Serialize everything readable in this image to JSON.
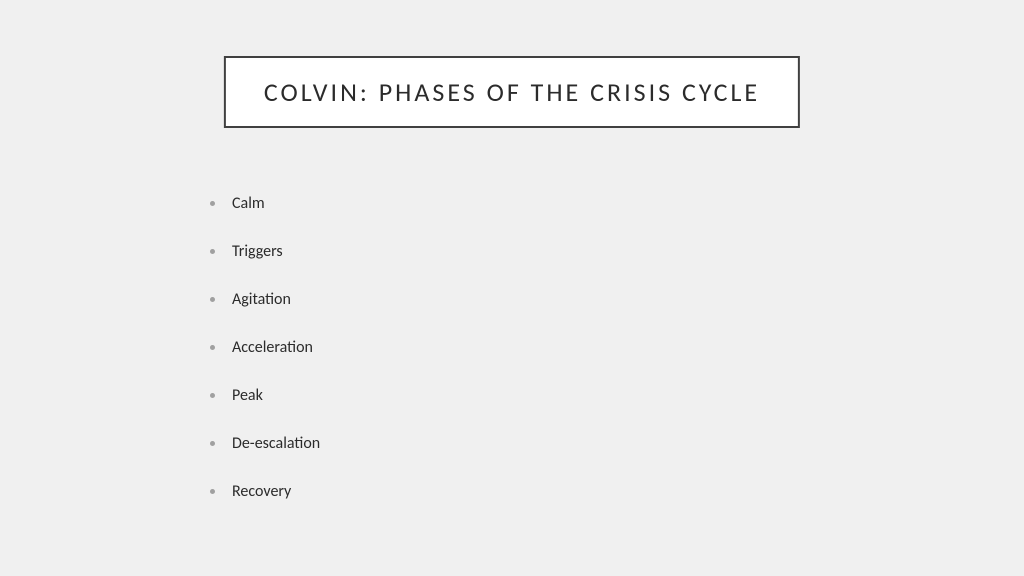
{
  "slide": {
    "title": "COLVIN: PHASES OF THE CRISIS CYCLE",
    "background_color": "#f0f0f0",
    "title_box": {
      "background_color": "#ffffff",
      "border_color": "#404040",
      "border_width": 2,
      "text_color": "#2b2b2b",
      "font_size": 26,
      "letter_spacing": 3
    },
    "list": {
      "bullet_color": "#a0a0a0",
      "text_color": "#2b2b2b",
      "font_size": 16,
      "items": [
        "Calm",
        "Triggers",
        "Agitation",
        "Acceleration",
        "Peak",
        "De-escalation",
        "Recovery"
      ]
    }
  }
}
